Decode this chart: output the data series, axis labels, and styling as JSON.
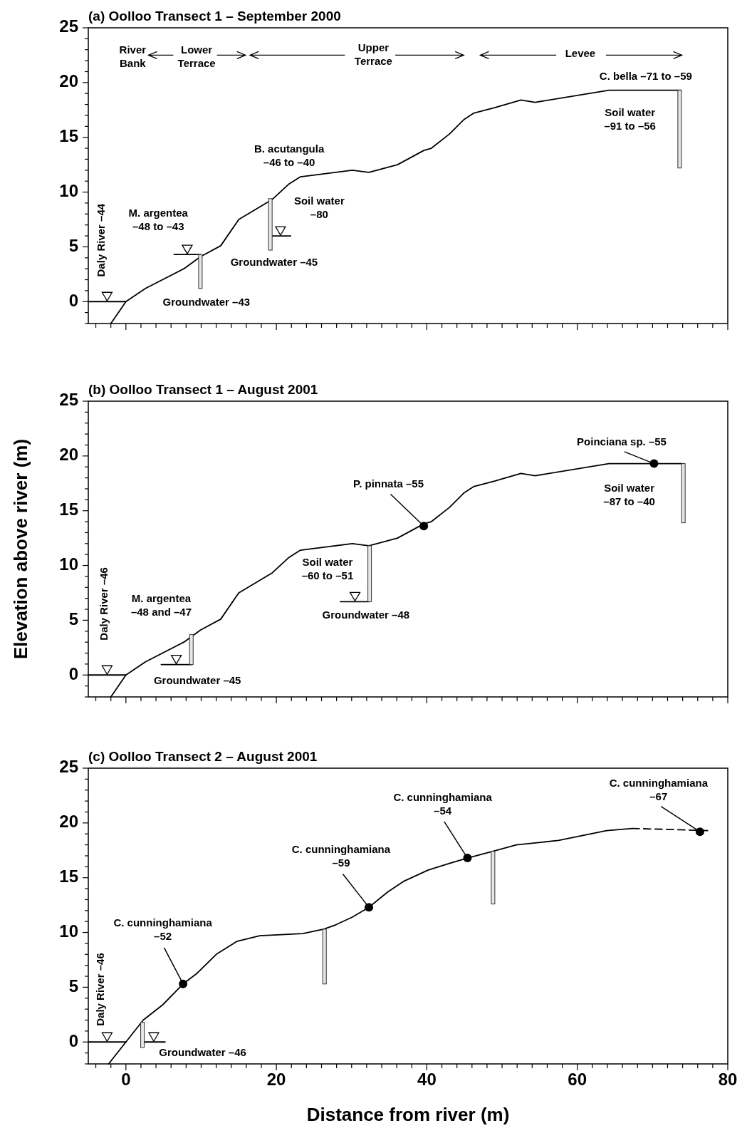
{
  "chart_data": [
    {
      "type": "line",
      "title": "(a) Oolloo Transect 1 – September 2000",
      "xlim": [
        -5,
        80
      ],
      "ylim": [
        -2,
        25
      ],
      "tick_labels": "y",
      "xticks": [
        {
          "value": -4,
          "label": null
        },
        {
          "value": -2,
          "label": null
        },
        0,
        {
          "value": 2,
          "label": null
        },
        {
          "value": 4,
          "label": null
        },
        {
          "value": 6,
          "label": null
        },
        {
          "value": 8,
          "label": null
        },
        {
          "value": 10,
          "label": null
        },
        {
          "value": 12,
          "label": null
        },
        {
          "value": 14,
          "label": null
        },
        {
          "value": 16,
          "label": null
        },
        {
          "value": 18,
          "label": null
        },
        20,
        {
          "value": 22,
          "label": null
        },
        {
          "value": 24,
          "label": null
        },
        {
          "value": 26,
          "label": null
        },
        {
          "value": 28,
          "label": null
        },
        {
          "value": 30,
          "label": null
        },
        {
          "value": 32,
          "label": null
        },
        {
          "value": 34,
          "label": null
        },
        {
          "value": 36,
          "label": null
        },
        {
          "value": 38,
          "label": null
        },
        40,
        {
          "value": 42,
          "label": null
        },
        {
          "value": 44,
          "label": null
        },
        {
          "value": 46,
          "label": null
        },
        {
          "value": 48,
          "label": null
        },
        {
          "value": 50,
          "label": null
        },
        {
          "value": 52,
          "label": null
        },
        {
          "value": 54,
          "label": null
        },
        {
          "value": 56,
          "label": null
        },
        {
          "value": 58,
          "label": null
        },
        60,
        {
          "value": 62,
          "label": null
        },
        {
          "value": 64,
          "label": null
        },
        {
          "value": 66,
          "label": null
        },
        {
          "value": 68,
          "label": null
        },
        {
          "value": 70,
          "label": null
        },
        {
          "value": 72,
          "label": null
        },
        {
          "value": 74,
          "label": null
        },
        {
          "value": 76,
          "label": null
        },
        {
          "value": 78,
          "label": null
        },
        80
      ],
      "yticks": [
        {
          "value": -2,
          "label": null
        },
        {
          "value": -1,
          "label": null
        },
        0,
        {
          "value": 1,
          "label": null
        },
        {
          "value": 2,
          "label": null
        },
        {
          "value": 3,
          "label": null
        },
        {
          "value": 4,
          "label": null
        },
        5,
        {
          "value": 6,
          "label": null
        },
        {
          "value": 7,
          "label": null
        },
        {
          "value": 8,
          "label": null
        },
        {
          "value": 9,
          "label": null
        },
        10,
        {
          "value": 11,
          "label": null
        },
        {
          "value": 12,
          "label": null
        },
        {
          "value": 13,
          "label": null
        },
        {
          "value": 14,
          "label": null
        },
        15,
        {
          "value": 16,
          "label": null
        },
        {
          "value": 17,
          "label": null
        },
        {
          "value": 18,
          "label": null
        },
        {
          "value": 19,
          "label": null
        },
        20,
        {
          "value": 21,
          "label": null
        },
        {
          "value": 22,
          "label": null
        },
        {
          "value": 23,
          "label": null
        },
        {
          "value": 24,
          "label": null
        },
        25
      ],
      "series": [
        {
          "color": "#000000",
          "x": [
            -2,
            0,
            2.6,
            7.7,
            9.9,
            12.6,
            15,
            19.4,
            21.6,
            23.2,
            30.1,
            32.3,
            36.1,
            39.6,
            40.6,
            43,
            44.9,
            46.2,
            49,
            52.5,
            54.4,
            64.2,
            73.8
          ],
          "values": [
            -2,
            0,
            1.2,
            3,
            4.1,
            5.1,
            7.5,
            9.3,
            10.7,
            11.4,
            12,
            11.8,
            12.5,
            13.8,
            14,
            15.3,
            16.6,
            17.2,
            17.7,
            18.4,
            18.2,
            19.3,
            19.3
          ]
        },
        {
          "color": "#000000",
          "x": [
            -5,
            0
          ],
          "values": [
            0,
            0
          ]
        },
        {
          "color": "#000000",
          "x": [
            6.4,
            9.9
          ],
          "values": [
            4.3,
            4.3
          ]
        },
        {
          "color": "#000000",
          "x": [
            19.2,
            21.9
          ],
          "values": [
            6,
            6
          ]
        },
        {
          "type": "bar",
          "color": "#e6e6e6",
          "x": [
            9.9,
            19.2,
            73.6
          ],
          "base": [
            1.2,
            4.7,
            12.2
          ],
          "values": [
            3.1,
            4.7,
            7.1
          ]
        }
      ],
      "annotations": [
        "Daly River –44",
        "River\nBank",
        "Lower\nTerrace",
        "Upper\nTerrace",
        "Levee",
        "M. argentea\n–48 to –43",
        "Groundwater –43",
        "B. acutangula\n–46 to –40",
        "Soil water\n–80",
        "Groundwater –45",
        "C. bella –71 to –59",
        "Soil water\n–91 to –56"
      ]
    },
    {
      "type": "line",
      "title": "(b) Oolloo Transect 1 – August 2001",
      "ylabel": "Elevation above river (m)",
      "xlim": [
        -5,
        80
      ],
      "ylim": [
        -2,
        25
      ],
      "tick_labels": "y",
      "xticks": [
        {
          "value": -4,
          "label": null
        },
        {
          "value": -2,
          "label": null
        },
        0,
        {
          "value": 2,
          "label": null
        },
        {
          "value": 4,
          "label": null
        },
        {
          "value": 6,
          "label": null
        },
        {
          "value": 8,
          "label": null
        },
        {
          "value": 10,
          "label": null
        },
        {
          "value": 12,
          "label": null
        },
        {
          "value": 14,
          "label": null
        },
        {
          "value": 16,
          "label": null
        },
        {
          "value": 18,
          "label": null
        },
        20,
        {
          "value": 22,
          "label": null
        },
        {
          "value": 24,
          "label": null
        },
        {
          "value": 26,
          "label": null
        },
        {
          "value": 28,
          "label": null
        },
        {
          "value": 30,
          "label": null
        },
        {
          "value": 32,
          "label": null
        },
        {
          "value": 34,
          "label": null
        },
        {
          "value": 36,
          "label": null
        },
        {
          "value": 38,
          "label": null
        },
        40,
        {
          "value": 42,
          "label": null
        },
        {
          "value": 44,
          "label": null
        },
        {
          "value": 46,
          "label": null
        },
        {
          "value": 48,
          "label": null
        },
        {
          "value": 50,
          "label": null
        },
        {
          "value": 52,
          "label": null
        },
        {
          "value": 54,
          "label": null
        },
        {
          "value": 56,
          "label": null
        },
        {
          "value": 58,
          "label": null
        },
        60,
        {
          "value": 62,
          "label": null
        },
        {
          "value": 64,
          "label": null
        },
        {
          "value": 66,
          "label": null
        },
        {
          "value": 68,
          "label": null
        },
        {
          "value": 70,
          "label": null
        },
        {
          "value": 72,
          "label": null
        },
        {
          "value": 74,
          "label": null
        },
        {
          "value": 76,
          "label": null
        },
        {
          "value": 78,
          "label": null
        },
        80
      ],
      "yticks": [
        {
          "value": -2,
          "label": null
        },
        {
          "value": -1,
          "label": null
        },
        0,
        {
          "value": 1,
          "label": null
        },
        {
          "value": 2,
          "label": null
        },
        {
          "value": 3,
          "label": null
        },
        {
          "value": 4,
          "label": null
        },
        5,
        {
          "value": 6,
          "label": null
        },
        {
          "value": 7,
          "label": null
        },
        {
          "value": 8,
          "label": null
        },
        {
          "value": 9,
          "label": null
        },
        10,
        {
          "value": 11,
          "label": null
        },
        {
          "value": 12,
          "label": null
        },
        {
          "value": 13,
          "label": null
        },
        {
          "value": 14,
          "label": null
        },
        15,
        {
          "value": 16,
          "label": null
        },
        {
          "value": 17,
          "label": null
        },
        {
          "value": 18,
          "label": null
        },
        {
          "value": 19,
          "label": null
        },
        20,
        {
          "value": 21,
          "label": null
        },
        {
          "value": 22,
          "label": null
        },
        {
          "value": 23,
          "label": null
        },
        {
          "value": 24,
          "label": null
        },
        25
      ],
      "series": [
        {
          "color": "#000000",
          "x": [
            -2,
            0,
            2.6,
            7.7,
            9.9,
            12.6,
            15,
            19.4,
            21.6,
            23.2,
            30.1,
            32.3,
            36.1,
            39.6,
            40.6,
            43,
            44.9,
            46.2,
            49,
            52.5,
            54.4,
            64.2,
            74.1
          ],
          "values": [
            -2,
            0,
            1.2,
            3,
            4.1,
            5.1,
            7.5,
            9.3,
            10.7,
            11.4,
            12,
            11.8,
            12.5,
            13.8,
            14,
            15.3,
            16.6,
            17.2,
            17.7,
            18.4,
            18.2,
            19.3,
            19.3
          ]
        },
        {
          "color": "#000000",
          "x": [
            -5,
            0
          ],
          "values": [
            0,
            0
          ]
        },
        {
          "color": "#000000",
          "x": [
            4.7,
            8.7
          ],
          "values": [
            0.95,
            0.95
          ]
        },
        {
          "color": "#000000",
          "x": [
            28.5,
            32.4
          ],
          "values": [
            6.7,
            6.7
          ]
        },
        {
          "type": "bar",
          "color": "#e6e6e6",
          "x": [
            8.7,
            32.4,
            74.1
          ],
          "base": [
            0.95,
            6.7,
            13.9
          ],
          "values": [
            2.75,
            5.1,
            5.4
          ]
        },
        {
          "type": "scatter",
          "marker": "circle",
          "color": "#000000",
          "x": [
            39.6,
            70.2
          ],
          "values": [
            13.6,
            19.3
          ]
        }
      ],
      "annotations": [
        "Daly River –46",
        "M. argentea\n–48 and –47",
        "Groundwater –45",
        "Soil water\n–60 to –51",
        "Groundwater –48",
        {
          "text": "P. pinnata –55",
          "x": 39.6,
          "y": 13.6
        },
        {
          "text": "Poinciana sp. –55",
          "x": 70.2,
          "y": 19.3
        },
        "Soil water\n–87 to –40"
      ]
    },
    {
      "type": "line",
      "title": "(c) Oolloo Transect 2 – August 2001",
      "xlabel": "Distance from river (m)",
      "xlim": [
        -5,
        80
      ],
      "ylim": [
        -2,
        25
      ],
      "xticks": [
        {
          "value": -4,
          "label": null
        },
        {
          "value": -2,
          "label": null
        },
        0,
        {
          "value": 2,
          "label": null
        },
        {
          "value": 4,
          "label": null
        },
        {
          "value": 6,
          "label": null
        },
        {
          "value": 8,
          "label": null
        },
        {
          "value": 10,
          "label": null
        },
        {
          "value": 12,
          "label": null
        },
        {
          "value": 14,
          "label": null
        },
        {
          "value": 16,
          "label": null
        },
        {
          "value": 18,
          "label": null
        },
        20,
        {
          "value": 22,
          "label": null
        },
        {
          "value": 24,
          "label": null
        },
        {
          "value": 26,
          "label": null
        },
        {
          "value": 28,
          "label": null
        },
        {
          "value": 30,
          "label": null
        },
        {
          "value": 32,
          "label": null
        },
        {
          "value": 34,
          "label": null
        },
        {
          "value": 36,
          "label": null
        },
        {
          "value": 38,
          "label": null
        },
        40,
        {
          "value": 42,
          "label": null
        },
        {
          "value": 44,
          "label": null
        },
        {
          "value": 46,
          "label": null
        },
        {
          "value": 48,
          "label": null
        },
        {
          "value": 50,
          "label": null
        },
        {
          "value": 52,
          "label": null
        },
        {
          "value": 54,
          "label": null
        },
        {
          "value": 56,
          "label": null
        },
        {
          "value": 58,
          "label": null
        },
        60,
        {
          "value": 62,
          "label": null
        },
        {
          "value": 64,
          "label": null
        },
        {
          "value": 66,
          "label": null
        },
        {
          "value": 68,
          "label": null
        },
        {
          "value": 70,
          "label": null
        },
        {
          "value": 72,
          "label": null
        },
        {
          "value": 74,
          "label": null
        },
        {
          "value": 76,
          "label": null
        },
        {
          "value": 78,
          "label": null
        },
        80
      ],
      "yticks": [
        {
          "value": -2,
          "label": null
        },
        {
          "value": -1,
          "label": null
        },
        0,
        {
          "value": 1,
          "label": null
        },
        {
          "value": 2,
          "label": null
        },
        {
          "value": 3,
          "label": null
        },
        {
          "value": 4,
          "label": null
        },
        5,
        {
          "value": 6,
          "label": null
        },
        {
          "value": 7,
          "label": null
        },
        {
          "value": 8,
          "label": null
        },
        {
          "value": 9,
          "label": null
        },
        10,
        {
          "value": 11,
          "label": null
        },
        {
          "value": 12,
          "label": null
        },
        {
          "value": 13,
          "label": null
        },
        {
          "value": 14,
          "label": null
        },
        15,
        {
          "value": 16,
          "label": null
        },
        {
          "value": 17,
          "label": null
        },
        {
          "value": 18,
          "label": null
        },
        {
          "value": 19,
          "label": null
        },
        20,
        {
          "value": 21,
          "label": null
        },
        {
          "value": 22,
          "label": null
        },
        {
          "value": 23,
          "label": null
        },
        {
          "value": 24,
          "label": null
        },
        25
      ],
      "series": [
        {
          "color": "#000000",
          "x": [
            -2.3,
            0,
            2.3,
            4.9,
            7.6,
            9.5,
            12,
            14.8,
            17.8,
            23.5,
            26.3,
            27.9,
            30.1,
            32.3,
            34.8,
            37,
            40.2,
            43,
            45.4,
            48.7,
            51.9,
            57.5,
            63.9,
            67.3
          ],
          "values": [
            -2,
            0,
            2,
            3.4,
            5.3,
            6.3,
            8,
            9.2,
            9.7,
            9.9,
            10.3,
            10.7,
            11.4,
            12.3,
            13.7,
            14.7,
            15.7,
            16.3,
            16.8,
            17.4,
            18,
            18.4,
            19.3,
            19.5
          ]
        },
        {
          "line_style": "dashed",
          "color": "#000000",
          "x": [
            67.3,
            77.4
          ],
          "values": [
            19.5,
            19.3
          ]
        },
        {
          "color": "#000000",
          "x": [
            -5,
            0
          ],
          "values": [
            0,
            0
          ]
        },
        {
          "color": "#000000",
          "x": [
            2.2,
            5.2
          ],
          "values": [
            0,
            0
          ]
        },
        {
          "type": "bar",
          "color": "#e6e6e6",
          "x": [
            2.2,
            26.4,
            48.8
          ],
          "base": [
            -0.5,
            5.3,
            12.6
          ],
          "values": [
            2.3,
            5,
            4.8
          ]
        },
        {
          "type": "scatter",
          "marker": "circle",
          "color": "#000000",
          "x": [
            7.6,
            32.3,
            45.4,
            76.3
          ],
          "values": [
            5.3,
            12.3,
            16.8,
            19.2
          ]
        }
      ],
      "annotations": [
        "Daly River –46",
        {
          "text": "C. cunninghamiana\n–52",
          "x": 7.6,
          "y": 5.3
        },
        "Groundwater –46",
        {
          "text": "C. cunninghamiana\n–59",
          "x": 32.3,
          "y": 12.3
        },
        {
          "text": "C. cunninghamiana\n–54",
          "x": 45.4,
          "y": 16.8
        },
        {
          "text": "C. cunninghamiana\n–67",
          "x": 76.3,
          "y": 19.2
        }
      ]
    }
  ]
}
